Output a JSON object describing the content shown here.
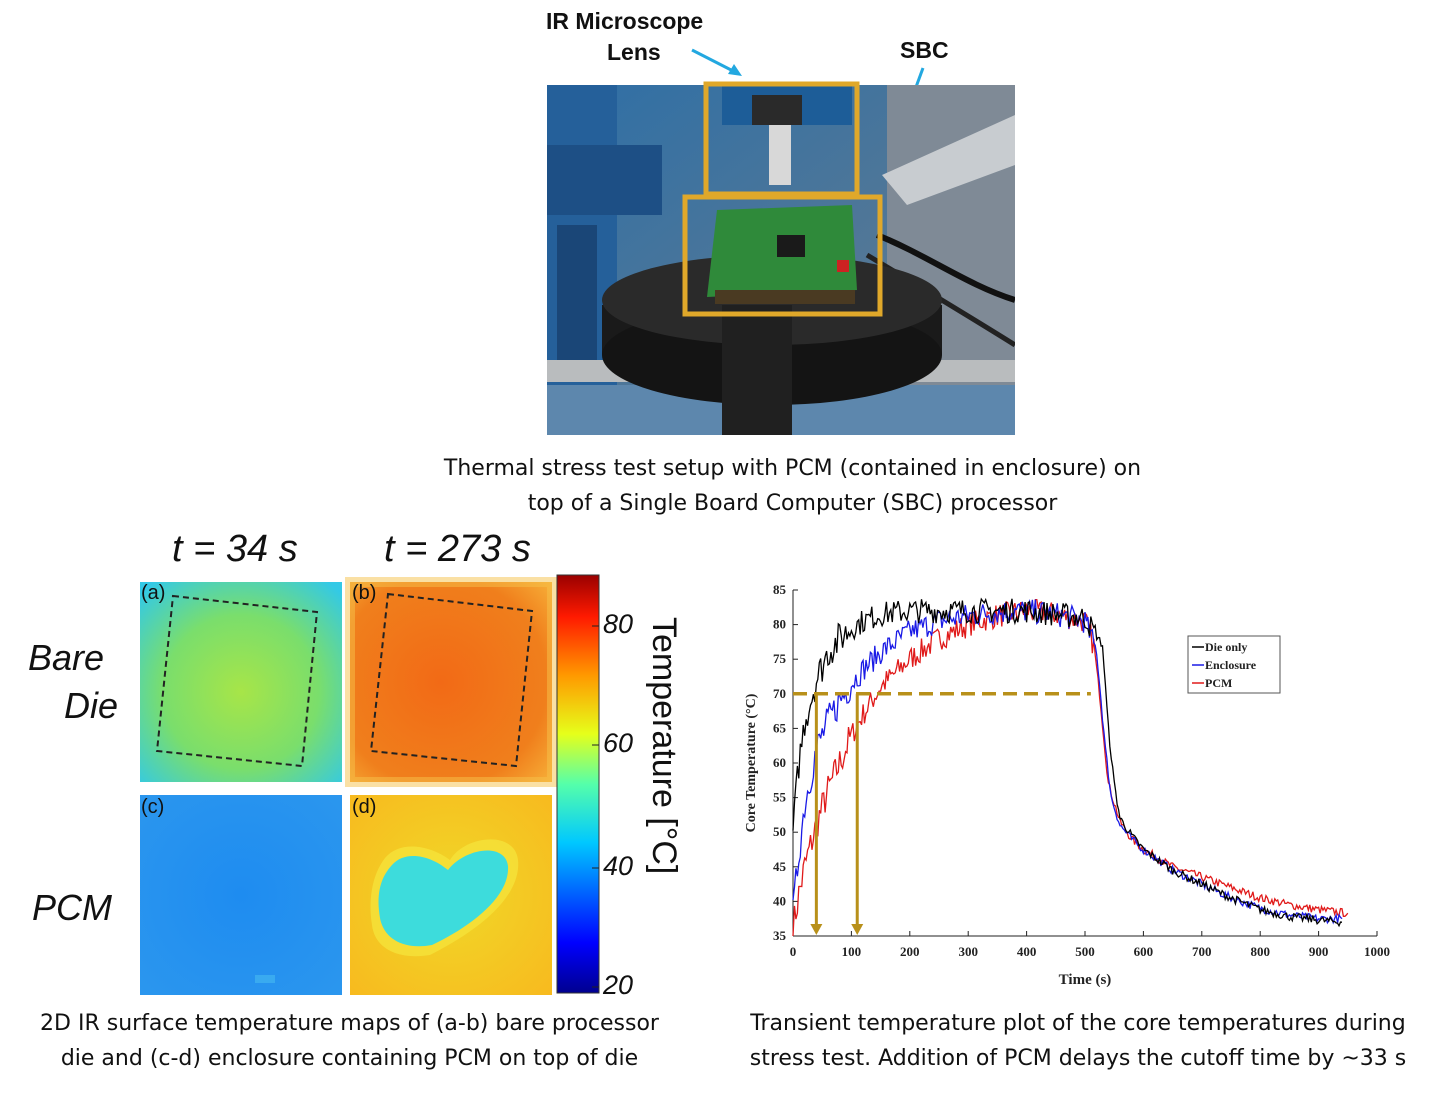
{
  "photo": {
    "labels": {
      "lens_line1": "IR Microscope",
      "lens_line2": "Lens",
      "sbc": "SBC"
    },
    "caption_line1": "Thermal stress test setup with PCM (contained in enclosure) on",
    "caption_line2": "top of a Single Board Computer (SBC) processor"
  },
  "ir_maps": {
    "time_labels": [
      "t = 34 s",
      "t = 273 s"
    ],
    "row_labels": {
      "bare_line1": "Bare",
      "bare_line2": "Die",
      "pcm": "PCM"
    },
    "panel_tags": [
      "(a)",
      "(b)",
      "(c)",
      "(d)"
    ],
    "colorbar": {
      "label": "Temperature [°C]",
      "ticks": [
        "80",
        "60",
        "40",
        "20"
      ],
      "min": 20,
      "max": 90
    },
    "caption_line1": "2D IR surface temperature maps of (a-b) bare processor",
    "caption_line2": "die and (c-d) enclosure containing PCM on top of die",
    "colors": {
      "bare_34s": "#7fe06a",
      "bare_273s": "#f26a16",
      "pcm_34s": "#1e8cf0",
      "pcm_273s": "#f5c518",
      "pcm_core": "#3ddcdc"
    }
  },
  "plot_caption_line1": "Transient temperature plot of the core temperatures during",
  "plot_caption_line2": "stress test. Addition of PCM delays the cutoff time by ~33 s",
  "chart_data": {
    "type": "line",
    "xlabel": "Time (s)",
    "ylabel": "Core Temperature (°C)",
    "xlim": [
      0,
      1000
    ],
    "ylim": [
      35,
      85
    ],
    "xticks": [
      0,
      100,
      200,
      300,
      400,
      500,
      600,
      700,
      800,
      900,
      1000
    ],
    "yticks": [
      35,
      40,
      45,
      50,
      55,
      60,
      65,
      70,
      75,
      80,
      85
    ],
    "legend_position": "right",
    "threshold": {
      "y": 70,
      "x_end": 510,
      "color": "#b8901a"
    },
    "arrows": [
      {
        "x": 40,
        "from_y": 70,
        "to_y": 35
      },
      {
        "x": 110,
        "from_y": 70,
        "to_y": 35
      }
    ],
    "series": [
      {
        "name": "Die only",
        "color": "#000000",
        "x": [
          0,
          10,
          20,
          40,
          60,
          80,
          100,
          120,
          150,
          200,
          250,
          300,
          350,
          400,
          450,
          500,
          530,
          540,
          550,
          560,
          580,
          600,
          650,
          700,
          750,
          800,
          850,
          900,
          940
        ],
        "y": [
          50,
          60,
          66,
          72,
          76,
          78,
          79.5,
          80.5,
          81.5,
          82,
          82,
          82,
          82,
          82,
          81.5,
          81,
          77,
          65,
          57,
          52,
          49.5,
          47.5,
          44.5,
          42.5,
          40.5,
          38.8,
          37.8,
          37.3,
          37.0
        ]
      },
      {
        "name": "Enclosure",
        "color": "#1a1ae6",
        "x": [
          0,
          10,
          20,
          40,
          60,
          80,
          100,
          120,
          150,
          200,
          250,
          300,
          350,
          400,
          450,
          500,
          520,
          535,
          545,
          560,
          580,
          600,
          650,
          700,
          750,
          800,
          850,
          900,
          940
        ],
        "y": [
          38,
          47,
          54,
          62,
          66,
          69,
          71.5,
          73.5,
          76,
          79,
          80.5,
          81.3,
          81.8,
          82,
          81.5,
          80.5,
          76,
          62,
          55,
          51,
          49,
          47.5,
          44.5,
          42.5,
          40.5,
          39,
          38,
          37.5,
          37.5
        ]
      },
      {
        "name": "PCM",
        "color": "#e01a1a",
        "x": [
          0,
          10,
          20,
          40,
          60,
          80,
          100,
          120,
          150,
          200,
          250,
          300,
          350,
          400,
          450,
          500,
          515,
          525,
          540,
          560,
          580,
          600,
          650,
          700,
          750,
          800,
          850,
          900,
          950
        ],
        "y": [
          36,
          41,
          45,
          51,
          56,
          60,
          64,
          67,
          71,
          75,
          78,
          80,
          81.3,
          82,
          81.5,
          80.5,
          77,
          70,
          57,
          51.5,
          49,
          47.5,
          45,
          43.5,
          42,
          40.5,
          39.5,
          38.8,
          38.3
        ]
      }
    ]
  }
}
